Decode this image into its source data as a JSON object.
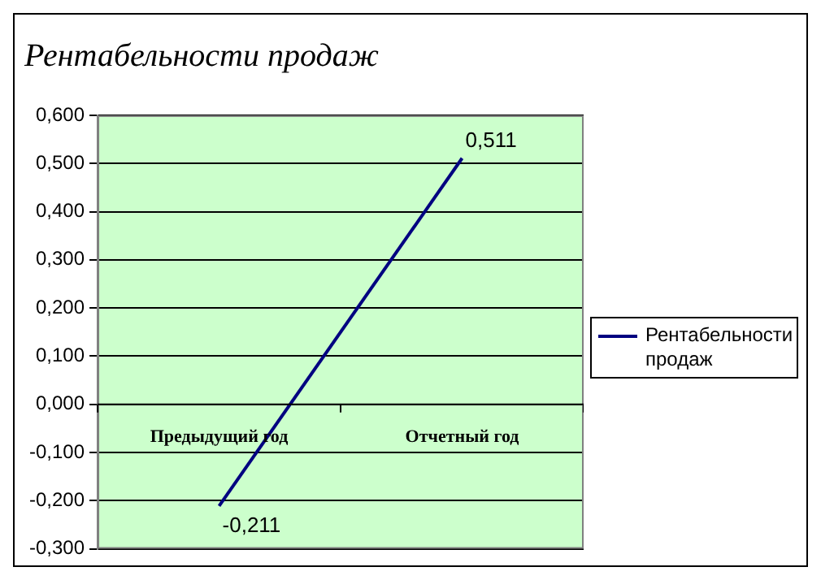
{
  "chart_data": {
    "type": "line",
    "title": "Рентабельности продаж",
    "categories": [
      "Предыдущий год",
      "Отчетный год"
    ],
    "series": [
      {
        "name": "Рентабельности продаж",
        "color": "#000080",
        "values": [
          -0.211,
          0.511
        ],
        "value_labels": [
          "-0,211",
          "0,511"
        ]
      }
    ],
    "ylim": [
      -0.3,
      0.6
    ],
    "yticks": [
      {
        "value": -0.3,
        "label": "-0,300"
      },
      {
        "value": -0.2,
        "label": "-0,200"
      },
      {
        "value": -0.1,
        "label": "-0,100"
      },
      {
        "value": 0,
        "label": "0,000"
      },
      {
        "value": 0.1,
        "label": "0,100"
      },
      {
        "value": 0.2,
        "label": "0,200"
      },
      {
        "value": 0.3,
        "label": "0,300"
      },
      {
        "value": 0.4,
        "label": "0,400"
      },
      {
        "value": 0.5,
        "label": "0,500"
      },
      {
        "value": 0.6,
        "label": "0,600"
      }
    ],
    "grid": "y",
    "legend": "right",
    "marker": "none",
    "line_style": "solid"
  }
}
